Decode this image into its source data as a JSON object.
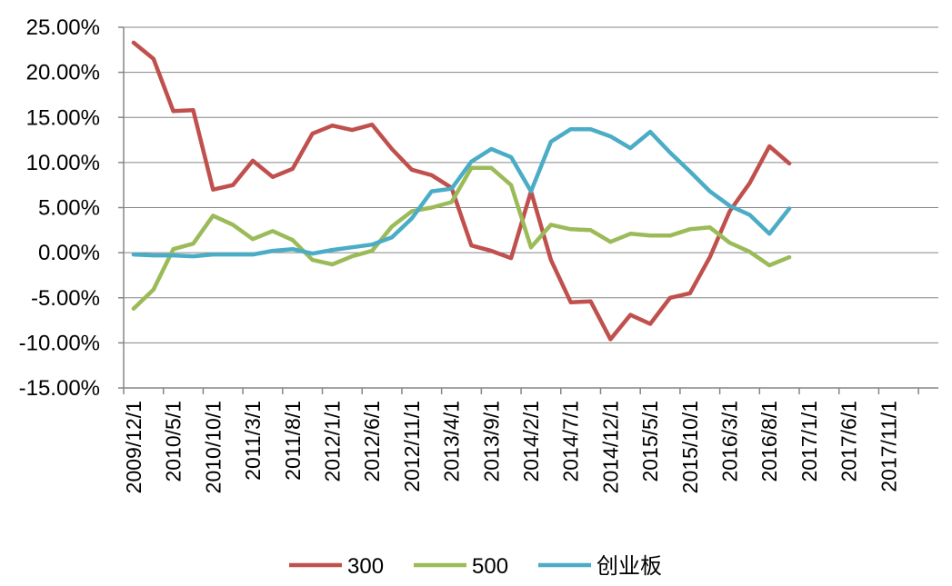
{
  "chart_data": {
    "type": "line",
    "title": "",
    "xlabel": "",
    "ylabel": "",
    "ylim": [
      -0.15,
      0.25
    ],
    "y_tick_labels": [
      "25.00%",
      "20.00%",
      "15.00%",
      "10.00%",
      "5.00%",
      "0.00%",
      "-5.00%",
      "-10.00%",
      "-15.00%"
    ],
    "y_tick_values": [
      0.25,
      0.2,
      0.15,
      0.1,
      0.05,
      0.0,
      -0.05,
      -0.1,
      -0.15
    ],
    "x": [
      "2009/12/1",
      "2010/3/1",
      "2010/5/1",
      "2010/8/1",
      "2010/10/1",
      "2011/1/1",
      "2011/3/1",
      "2011/6/1",
      "2011/8/1",
      "2011/11/1",
      "2012/1/1",
      "2012/4/1",
      "2012/6/1",
      "2012/9/1",
      "2012/11/1",
      "2013/2/1",
      "2013/4/1",
      "2013/7/1",
      "2013/9/1",
      "2013/12/1",
      "2014/2/1",
      "2014/5/1",
      "2014/7/1",
      "2014/10/1",
      "2014/12/1",
      "2015/3/1",
      "2015/5/1",
      "2015/8/1",
      "2015/10/1",
      "2016/1/1",
      "2016/3/1",
      "2016/6/1",
      "2016/8/1",
      "2016/11/1",
      "2017/1/1",
      "2017/4/1",
      "2017/6/1",
      "2017/9/1",
      "2017/11/1",
      "2018/2/1",
      "2018/4/1"
    ],
    "x_tick_labels": [
      "2009/12/1",
      "2010/5/1",
      "2010/10/1",
      "2011/3/1",
      "2011/8/1",
      "2012/1/1",
      "2012/6/1",
      "2012/11/1",
      "2013/4/1",
      "2013/9/1",
      "2014/2/1",
      "2014/7/1",
      "2014/12/1",
      "2015/5/1",
      "2015/10/1",
      "2016/3/1",
      "2016/8/1",
      "2017/1/1",
      "2017/6/1",
      "2017/11/1"
    ],
    "legend_position": "bottom",
    "grid": "horizontal",
    "series": [
      {
        "name": "300",
        "color": "#C0504D",
        "values": [
          0.233,
          0.215,
          0.157,
          0.158,
          0.07,
          0.075,
          0.102,
          0.084,
          0.093,
          0.132,
          0.141,
          0.136,
          0.142,
          0.115,
          0.092,
          0.086,
          0.072,
          0.008,
          0.002,
          -0.006,
          0.068,
          -0.008,
          -0.055,
          -0.054,
          -0.096,
          -0.069,
          -0.079,
          -0.05,
          -0.045,
          -0.005,
          0.046,
          0.077,
          0.118,
          0.099,
          null,
          null,
          null,
          null,
          null,
          null,
          null
        ]
      },
      {
        "name": "500",
        "color": "#9BBB59",
        "values": [
          -0.062,
          -0.041,
          0.004,
          0.01,
          0.041,
          0.031,
          0.015,
          0.024,
          0.014,
          -0.008,
          -0.013,
          -0.004,
          0.002,
          0.029,
          0.046,
          0.05,
          0.056,
          0.094,
          0.094,
          0.075,
          0.006,
          0.031,
          0.026,
          0.025,
          0.012,
          0.021,
          0.019,
          0.019,
          0.026,
          0.028,
          0.011,
          0.001,
          -0.014,
          -0.005,
          null,
          null,
          null,
          null,
          null,
          null,
          null
        ]
      },
      {
        "name": "创业板",
        "color": "#4BACC6",
        "values": [
          -0.002,
          -0.003,
          -0.003,
          -0.004,
          -0.002,
          -0.002,
          -0.002,
          0.002,
          0.004,
          -0.001,
          0.003,
          0.006,
          0.009,
          0.017,
          0.038,
          0.068,
          0.071,
          0.101,
          0.115,
          0.106,
          0.068,
          0.123,
          0.137,
          0.137,
          0.129,
          0.116,
          0.134,
          0.111,
          0.09,
          0.068,
          0.052,
          0.042,
          0.021,
          0.049,
          null,
          null,
          null,
          null,
          null,
          null,
          null
        ]
      }
    ]
  }
}
